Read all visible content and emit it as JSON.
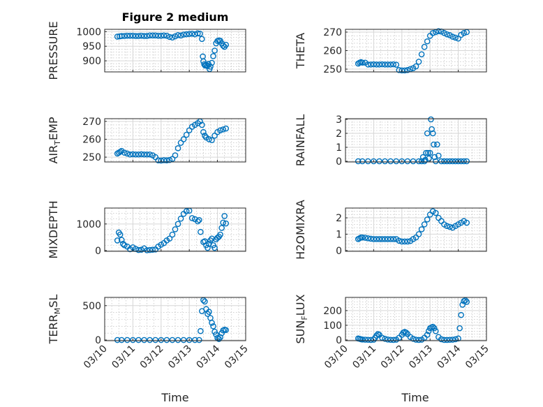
{
  "chart_data": {
    "type": "scatter",
    "title": "Figure 2 medium",
    "marker_color": "#0072BD",
    "x_tick_labels": [
      "03/10",
      "03/11",
      "03/12",
      "03/13",
      "03/14",
      "03/15"
    ],
    "x_axis_label": "Time",
    "grid": "on",
    "panels": [
      {
        "name": "pressure",
        "ylabel": "PRESSURE",
        "yticks": [
          900,
          950,
          1000
        ],
        "ylim": [
          862,
          1008
        ],
        "x": [
          0.45,
          0.53,
          0.6,
          0.7,
          0.8,
          0.9,
          1.0,
          1.1,
          1.2,
          1.3,
          1.4,
          1.5,
          1.6,
          1.7,
          1.8,
          1.9,
          2.0,
          2.1,
          2.2,
          2.3,
          2.4,
          2.5,
          2.6,
          2.7,
          2.8,
          2.9,
          3.0,
          3.1,
          3.2,
          3.3,
          3.38,
          3.45,
          3.48,
          3.5,
          3.53,
          3.56,
          3.6,
          3.64,
          3.68,
          3.72,
          3.75,
          3.8,
          3.85,
          3.9,
          3.95,
          4.0,
          4.05,
          4.1,
          4.15,
          4.2,
          4.25,
          4.3
        ],
        "y": [
          983,
          984,
          985,
          985,
          986,
          986,
          986,
          985,
          985,
          986,
          985,
          985,
          987,
          987,
          987,
          986,
          986,
          987,
          986,
          982,
          980,
          984,
          988,
          987,
          990,
          991,
          992,
          993,
          991,
          994,
          993,
          975,
          915,
          898,
          888,
          884,
          886,
          882,
          889,
          872,
          880,
          893,
          916,
          935,
          960,
          968,
          970,
          969,
          960,
          952,
          948,
          955
        ]
      },
      {
        "name": "theta",
        "ylabel": "THETA",
        "yticks": [
          250,
          260,
          270
        ],
        "ylim": [
          248.5,
          271.5
        ],
        "x": [
          0.45,
          0.5,
          0.55,
          0.6,
          0.7,
          0.8,
          0.9,
          1.0,
          1.1,
          1.2,
          1.3,
          1.4,
          1.5,
          1.6,
          1.7,
          1.8,
          1.9,
          2.0,
          2.1,
          2.2,
          2.3,
          2.4,
          2.5,
          2.6,
          2.7,
          2.8,
          2.9,
          3.0,
          3.1,
          3.2,
          3.3,
          3.4,
          3.5,
          3.6,
          3.7,
          3.8,
          3.9,
          4.0,
          4.1,
          4.2,
          4.3
        ],
        "y": [
          253,
          253.5,
          253.8,
          253.5,
          253.5,
          252.5,
          252.5,
          252.6,
          252.5,
          252.5,
          252.6,
          252.5,
          252.5,
          252.5,
          252.6,
          252.4,
          249.5,
          249.3,
          249.3,
          249.5,
          250,
          250.5,
          251.5,
          254,
          258,
          262,
          265,
          268,
          269.5,
          270,
          270.5,
          270.3,
          269.5,
          268.8,
          268.3,
          267.5,
          267,
          266.5,
          268.5,
          269.5,
          270
        ]
      },
      {
        "name": "air-temp",
        "ylabel": "AIR_TEMP",
        "yticks": [
          250,
          260,
          270
        ],
        "ylim": [
          247.3,
          271.5
        ],
        "x": [
          0.45,
          0.5,
          0.55,
          0.6,
          0.7,
          0.8,
          0.9,
          1.0,
          1.1,
          1.2,
          1.3,
          1.4,
          1.5,
          1.6,
          1.7,
          1.8,
          1.9,
          2.0,
          2.1,
          2.2,
          2.3,
          2.4,
          2.5,
          2.6,
          2.7,
          2.8,
          2.9,
          3.0,
          3.1,
          3.2,
          3.3,
          3.38,
          3.45,
          3.5,
          3.55,
          3.6,
          3.7,
          3.8,
          3.9,
          4.0,
          4.1,
          4.2,
          4.3
        ],
        "y": [
          252,
          252.5,
          253,
          253.5,
          252.5,
          252,
          251.5,
          251.6,
          251.5,
          251.5,
          251.6,
          251.5,
          251.5,
          251.5,
          251,
          250,
          248.2,
          248.1,
          248.3,
          248.2,
          248.4,
          249,
          251,
          255,
          258,
          260,
          262.5,
          265,
          267,
          268,
          269,
          270,
          268,
          264,
          262,
          261,
          260,
          259.5,
          262,
          264,
          265,
          265.5,
          266
        ]
      },
      {
        "name": "rainfall",
        "ylabel": "RAINFALL",
        "yticks": [
          0,
          1,
          2,
          3
        ],
        "ylim": [
          -0.05,
          3.05
        ],
        "x": [
          0.45,
          0.6,
          0.8,
          1.0,
          1.2,
          1.4,
          1.6,
          1.8,
          2.0,
          2.2,
          2.4,
          2.6,
          2.7,
          2.75,
          2.8,
          2.83,
          2.86,
          2.9,
          2.93,
          2.96,
          3.0,
          3.03,
          3.06,
          3.1,
          3.13,
          3.16,
          3.2,
          3.25,
          3.3,
          3.4,
          3.5,
          3.6,
          3.7,
          3.8,
          3.9,
          4.0,
          4.1,
          4.2,
          4.3
        ],
        "y": [
          0,
          0,
          0,
          0,
          0,
          0,
          0,
          0,
          0,
          0,
          0,
          0,
          0,
          0.3,
          0,
          0.1,
          0.6,
          2.0,
          0.6,
          0.2,
          0.6,
          3.0,
          2.3,
          2.0,
          1.2,
          0.3,
          0,
          1.2,
          0.4,
          0,
          0,
          0,
          0,
          0,
          0,
          0,
          0,
          0,
          0
        ]
      },
      {
        "name": "mixdepth",
        "ylabel": "MIXDEPTH",
        "yticks": [
          0,
          1000
        ],
        "ylim": [
          -30,
          1600
        ],
        "x": [
          0.45,
          0.5,
          0.55,
          0.6,
          0.65,
          0.7,
          0.8,
          0.9,
          1.0,
          1.1,
          1.2,
          1.3,
          1.4,
          1.5,
          1.6,
          1.7,
          1.8,
          1.9,
          2.0,
          2.1,
          2.2,
          2.3,
          2.4,
          2.5,
          2.6,
          2.7,
          2.8,
          2.9,
          3.0,
          3.1,
          3.2,
          3.3,
          3.35,
          3.4,
          3.5,
          3.55,
          3.6,
          3.65,
          3.7,
          3.75,
          3.8,
          3.85,
          3.9,
          3.95,
          4.0,
          4.05,
          4.1,
          4.15,
          4.2,
          4.25,
          4.3
        ],
        "y": [
          380,
          680,
          600,
          400,
          250,
          200,
          150,
          50,
          120,
          60,
          20,
          30,
          80,
          10,
          20,
          30,
          40,
          150,
          220,
          280,
          380,
          450,
          600,
          800,
          1000,
          1200,
          1380,
          1480,
          1500,
          1220,
          1180,
          1100,
          1150,
          700,
          320,
          350,
          200,
          100,
          250,
          380,
          450,
          200,
          100,
          420,
          480,
          520,
          600,
          850,
          1050,
          1300,
          1020
        ]
      },
      {
        "name": "h2omixra",
        "ylabel": "H2OMIXRA",
        "yticks": [
          0,
          1,
          2
        ],
        "ylim": [
          -0.05,
          2.6
        ],
        "x": [
          0.45,
          0.5,
          0.55,
          0.6,
          0.7,
          0.8,
          0.9,
          1.0,
          1.1,
          1.2,
          1.3,
          1.4,
          1.5,
          1.6,
          1.7,
          1.8,
          1.9,
          2.0,
          2.1,
          2.2,
          2.3,
          2.4,
          2.5,
          2.6,
          2.7,
          2.8,
          2.9,
          3.0,
          3.1,
          3.2,
          3.3,
          3.4,
          3.5,
          3.6,
          3.7,
          3.8,
          3.9,
          4.0,
          4.1,
          4.2,
          4.3
        ],
        "y": [
          0.7,
          0.75,
          0.8,
          0.8,
          0.78,
          0.75,
          0.72,
          0.7,
          0.7,
          0.7,
          0.7,
          0.7,
          0.7,
          0.7,
          0.7,
          0.7,
          0.6,
          0.55,
          0.55,
          0.55,
          0.58,
          0.7,
          0.8,
          1.0,
          1.3,
          1.6,
          1.9,
          2.2,
          2.4,
          2.3,
          2.0,
          1.8,
          1.6,
          1.5,
          1.45,
          1.4,
          1.5,
          1.6,
          1.7,
          1.8,
          1.7
        ]
      },
      {
        "name": "terr-msl",
        "ylabel": "TERR_MSL",
        "yticks": [
          0,
          500
        ],
        "ylim": [
          -10,
          620
        ],
        "x": [
          0.45,
          0.6,
          0.8,
          1.0,
          1.2,
          1.4,
          1.6,
          1.8,
          2.0,
          2.2,
          2.4,
          2.6,
          2.8,
          3.0,
          3.2,
          3.35,
          3.4,
          3.45,
          3.5,
          3.55,
          3.6,
          3.65,
          3.7,
          3.75,
          3.8,
          3.85,
          3.9,
          3.95,
          4.0,
          4.05,
          4.1,
          4.15,
          4.2,
          4.25,
          4.3
        ],
        "y": [
          0,
          0,
          0,
          0,
          0,
          0,
          0,
          0,
          0,
          0,
          0,
          0,
          0,
          0,
          0,
          0,
          130,
          420,
          580,
          560,
          450,
          380,
          410,
          320,
          250,
          200,
          120,
          80,
          30,
          15,
          40,
          100,
          140,
          150,
          145
        ]
      },
      {
        "name": "sun-flux",
        "ylabel": "SUN_FLUX",
        "yticks": [
          0,
          100,
          200
        ],
        "ylim": [
          -5,
          290
        ],
        "x": [
          0.45,
          0.5,
          0.55,
          0.6,
          0.7,
          0.8,
          0.9,
          1.0,
          1.05,
          1.1,
          1.15,
          1.2,
          1.3,
          1.4,
          1.5,
          1.6,
          1.7,
          1.8,
          1.9,
          2.0,
          2.05,
          2.1,
          2.15,
          2.2,
          2.3,
          2.4,
          2.5,
          2.6,
          2.7,
          2.8,
          2.9,
          2.95,
          3.0,
          3.05,
          3.1,
          3.15,
          3.2,
          3.3,
          3.4,
          3.5,
          3.6,
          3.7,
          3.8,
          3.9,
          4.0,
          4.05,
          4.1,
          4.15,
          4.2,
          4.25,
          4.3
        ],
        "y": [
          10,
          8,
          5,
          3,
          2,
          1,
          0,
          2,
          15,
          30,
          40,
          35,
          15,
          8,
          3,
          1,
          0,
          2,
          15,
          35,
          50,
          55,
          50,
          40,
          20,
          8,
          2,
          0,
          2,
          15,
          35,
          60,
          80,
          85,
          90,
          80,
          60,
          20,
          5,
          0,
          0,
          1,
          2,
          5,
          10,
          80,
          170,
          240,
          265,
          270,
          260
        ]
      }
    ]
  }
}
